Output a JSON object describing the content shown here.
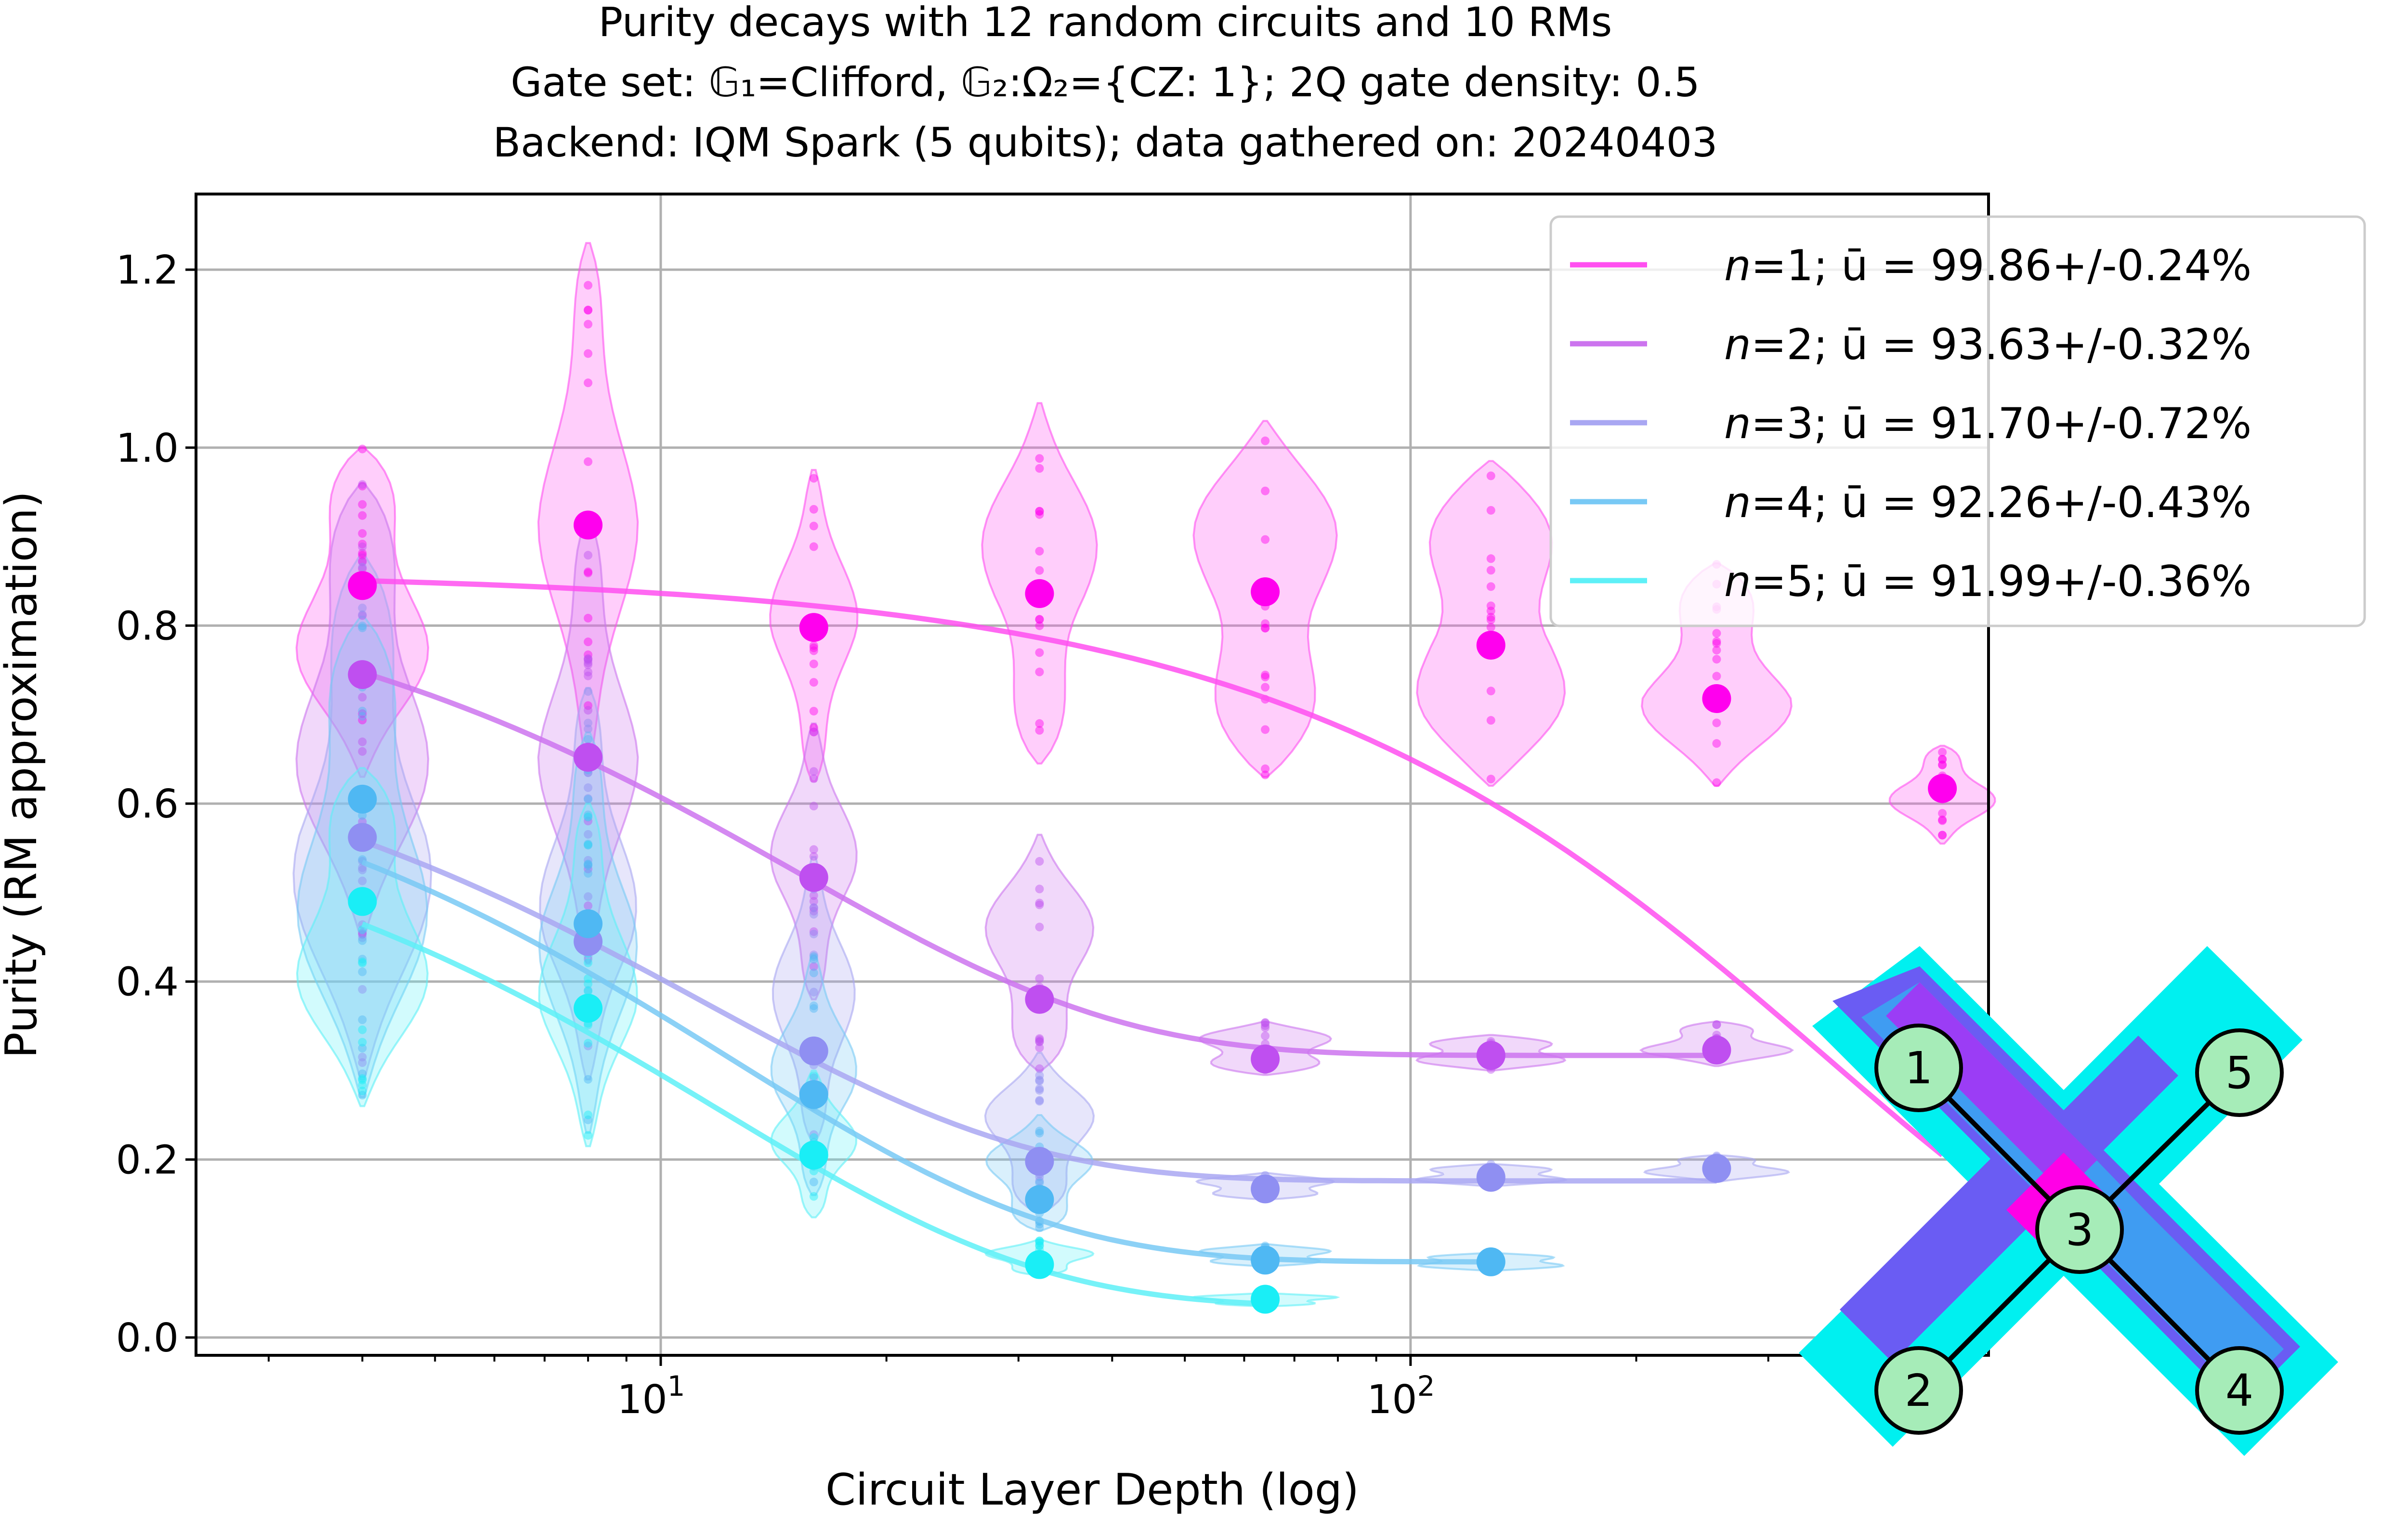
{
  "chart_data": {
    "type": "scatter",
    "title_lines": [
      "Purity decays with 12 random circuits and 10 RMs",
      "Gate set: 𝔾₁=Clifford, 𝔾₂:Ω₂={CZ: 1}; 2Q gate density: 0.5",
      "Backend: IQM Spark (5 qubits); data gathered on: 20240403"
    ],
    "xlabel": "Circuit Layer Depth (log)",
    "ylabel": "Purity (RM approximation)",
    "xscale": "log",
    "xlim": [
      2.4,
      590
    ],
    "ylim": [
      -0.02,
      1.285
    ],
    "yticks": [
      "0.0",
      "0.2",
      "0.4",
      "0.6",
      "0.8",
      "1.0",
      "1.2"
    ],
    "xtick_labels": [
      {
        "value": 10,
        "base": "10",
        "exp": "1"
      },
      {
        "value": 100,
        "base": "10",
        "exp": "2"
      }
    ],
    "grid": true,
    "legend_position": "upper-right",
    "depths": [
      4,
      8,
      16,
      32,
      64,
      128,
      256,
      512
    ],
    "series": [
      {
        "name": "n=1",
        "n_label": "n",
        "legend_rest": "=1; ū = 99.86+/-0.24%",
        "color": "#ff4ff0",
        "point_color": "#ff00ee",
        "points": [
          [
            4,
            0.845
          ],
          [
            8,
            0.913
          ],
          [
            16,
            0.798
          ],
          [
            32,
            0.836
          ],
          [
            64,
            0.838
          ],
          [
            128,
            0.778
          ],
          [
            256,
            0.718
          ],
          [
            512,
            0.617
          ]
        ],
        "fit": {
          "A": 0.86,
          "B": 0.0,
          "p": 0.9986,
          "k": 2
        },
        "violin_range": [
          [
            4,
            0.63,
            1.0
          ],
          [
            8,
            0.645,
            1.23
          ],
          [
            16,
            0.625,
            0.975
          ],
          [
            32,
            0.645,
            1.05
          ],
          [
            64,
            0.63,
            1.03
          ],
          [
            128,
            0.62,
            0.985
          ],
          [
            256,
            0.62,
            0.87
          ],
          [
            512,
            0.555,
            0.665
          ]
        ]
      },
      {
        "name": "n=2",
        "n_label": "n",
        "legend_rest": "=2; ū = 93.63+/-0.32%",
        "color": "#cc74ee",
        "point_color": "#bf4ff0",
        "points": [
          [
            4,
            0.745
          ],
          [
            8,
            0.652
          ],
          [
            16,
            0.517
          ],
          [
            32,
            0.38
          ],
          [
            64,
            0.313
          ],
          [
            128,
            0.317
          ],
          [
            256,
            0.323
          ]
        ],
        "fit": {
          "A": 0.56,
          "B": 0.317,
          "p": 0.9363,
          "k": 1
        },
        "violin_range": [
          [
            4,
            0.45,
            0.96
          ],
          [
            8,
            0.42,
            0.92
          ],
          [
            16,
            0.38,
            0.69
          ],
          [
            32,
            0.3,
            0.565
          ],
          [
            64,
            0.295,
            0.355
          ],
          [
            128,
            0.3,
            0.34
          ],
          [
            256,
            0.305,
            0.355
          ]
        ]
      },
      {
        "name": "n=3",
        "n_label": "n",
        "legend_rest": "=3; ū = 91.70+/-0.72%",
        "color": "#a9a7f2",
        "point_color": "#8f8ff2",
        "points": [
          [
            4,
            0.562
          ],
          [
            8,
            0.445
          ],
          [
            16,
            0.322
          ],
          [
            32,
            0.198
          ],
          [
            64,
            0.167
          ],
          [
            128,
            0.18
          ],
          [
            256,
            0.19
          ]
        ],
        "fit": {
          "A": 0.54,
          "B": 0.176,
          "p": 0.917,
          "k": 1
        },
        "violin_range": [
          [
            4,
            0.29,
            0.88
          ],
          [
            8,
            0.29,
            0.73
          ],
          [
            16,
            0.22,
            0.54
          ],
          [
            32,
            0.14,
            0.32
          ],
          [
            64,
            0.155,
            0.185
          ],
          [
            128,
            0.17,
            0.195
          ],
          [
            256,
            0.175,
            0.205
          ]
        ]
      },
      {
        "name": "n=4",
        "n_label": "n",
        "legend_rest": "=4; ū = 92.26+/-0.43%",
        "color": "#78c9f5",
        "point_color": "#4fb8f3",
        "points": [
          [
            4,
            0.605
          ],
          [
            8,
            0.465
          ],
          [
            16,
            0.273
          ],
          [
            32,
            0.155
          ],
          [
            64,
            0.087
          ],
          [
            128,
            0.085
          ]
        ],
        "fit": {
          "A": 0.62,
          "B": 0.085,
          "p": 0.9226,
          "k": 1
        },
        "violin_range": [
          [
            4,
            0.27,
            0.81
          ],
          [
            8,
            0.23,
            0.68
          ],
          [
            16,
            0.16,
            0.43
          ],
          [
            32,
            0.12,
            0.25
          ],
          [
            64,
            0.08,
            0.105
          ],
          [
            128,
            0.075,
            0.095
          ]
        ]
      },
      {
        "name": "n=5",
        "n_label": "n",
        "legend_rest": "=5; ū = 91.99+/-0.36%",
        "color": "#5ef0f7",
        "point_color": "#1aeef6",
        "points": [
          [
            4,
            0.49
          ],
          [
            8,
            0.37
          ],
          [
            16,
            0.205
          ],
          [
            32,
            0.082
          ],
          [
            64,
            0.043
          ]
        ],
        "fit": {
          "A": 0.6,
          "B": 0.035,
          "p": 0.9199,
          "k": 1
        },
        "violin_range": [
          [
            4,
            0.26,
            0.64
          ],
          [
            8,
            0.215,
            0.6
          ],
          [
            16,
            0.135,
            0.3
          ],
          [
            32,
            0.07,
            0.11
          ],
          [
            64,
            0.035,
            0.05
          ]
        ]
      }
    ]
  },
  "qubit_map": {
    "qubits": [
      "1",
      "2",
      "3",
      "4",
      "5"
    ],
    "fill_colors": [
      "#00f0f0",
      "#6a5cf3",
      "#9b3df5",
      "#ff00e6",
      "#3f9cf2"
    ],
    "node_color": "#a6ecb8"
  }
}
